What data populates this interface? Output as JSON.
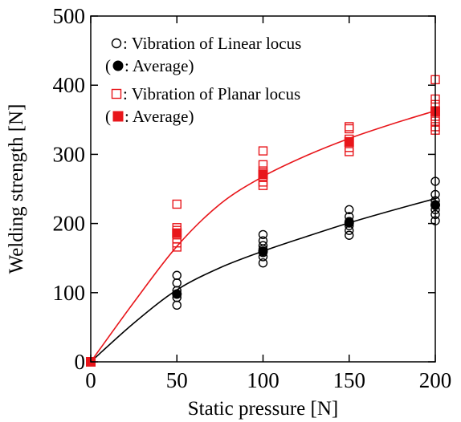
{
  "chart_data": {
    "type": "scatter",
    "xlabel": "Static pressure [N]",
    "ylabel": "Welding strength [N]",
    "xlim": [
      0,
      200
    ],
    "ylim": [
      0,
      500
    ],
    "xticks": [
      0,
      50,
      100,
      150,
      200
    ],
    "yticks": [
      0,
      100,
      200,
      300,
      400,
      500
    ],
    "xtick_labels": [
      "0",
      "50",
      "100",
      "150",
      "200"
    ],
    "ytick_labels": [
      "0",
      "100",
      "200",
      "300",
      "400",
      "500"
    ],
    "grid": false,
    "legend_placement": "top-left",
    "series": [
      {
        "name": "Vibration of Linear locus",
        "marker": "open-circle",
        "color": "#000000",
        "points": [
          [
            0,
            0
          ],
          [
            50,
            82
          ],
          [
            50,
            93
          ],
          [
            50,
            98
          ],
          [
            50,
            103
          ],
          [
            50,
            114
          ],
          [
            50,
            125
          ],
          [
            100,
            143
          ],
          [
            100,
            152
          ],
          [
            100,
            158
          ],
          [
            100,
            163
          ],
          [
            100,
            168
          ],
          [
            100,
            175
          ],
          [
            100,
            184
          ],
          [
            150,
            183
          ],
          [
            150,
            190
          ],
          [
            150,
            197
          ],
          [
            150,
            203
          ],
          [
            150,
            210
          ],
          [
            150,
            220
          ],
          [
            200,
            204
          ],
          [
            200,
            213
          ],
          [
            200,
            220
          ],
          [
            200,
            226
          ],
          [
            200,
            233
          ],
          [
            200,
            242
          ],
          [
            200,
            261
          ]
        ]
      },
      {
        "name": "Average",
        "marker": "filled-circle",
        "color": "#000000",
        "points": [
          [
            0,
            0
          ],
          [
            50,
            98
          ],
          [
            100,
            160
          ],
          [
            150,
            201
          ],
          [
            200,
            227
          ]
        ]
      },
      {
        "name": "Vibration of Planar locus",
        "marker": "open-square",
        "color": "#e8161b",
        "points": [
          [
            0,
            0
          ],
          [
            50,
            166
          ],
          [
            50,
            172
          ],
          [
            50,
            178
          ],
          [
            50,
            190
          ],
          [
            50,
            194
          ],
          [
            50,
            228
          ],
          [
            100,
            255
          ],
          [
            100,
            260
          ],
          [
            100,
            268
          ],
          [
            100,
            276
          ],
          [
            100,
            285
          ],
          [
            100,
            305
          ],
          [
            150,
            304
          ],
          [
            150,
            310
          ],
          [
            150,
            318
          ],
          [
            150,
            322
          ],
          [
            150,
            337
          ],
          [
            150,
            340
          ],
          [
            200,
            335
          ],
          [
            200,
            340
          ],
          [
            200,
            348
          ],
          [
            200,
            355
          ],
          [
            200,
            363
          ],
          [
            200,
            372
          ],
          [
            200,
            380
          ],
          [
            200,
            408
          ]
        ]
      },
      {
        "name": "Average",
        "marker": "filled-square",
        "color": "#e8161b",
        "points": [
          [
            0,
            0
          ],
          [
            50,
            186
          ],
          [
            100,
            271
          ],
          [
            150,
            318
          ],
          [
            200,
            362
          ]
        ]
      }
    ],
    "fit_curves": [
      {
        "series": "Vibration of Linear locus",
        "color": "#000000",
        "points": [
          [
            0,
            0
          ],
          [
            25,
            56
          ],
          [
            50,
            104
          ],
          [
            75,
            136
          ],
          [
            100,
            160
          ],
          [
            125,
            181
          ],
          [
            150,
            201
          ],
          [
            175,
            219
          ],
          [
            200,
            236
          ]
        ]
      },
      {
        "series": "Vibration of Planar locus",
        "color": "#e8161b",
        "points": [
          [
            0,
            0
          ],
          [
            25,
            86
          ],
          [
            50,
            167
          ],
          [
            75,
            228
          ],
          [
            100,
            268
          ],
          [
            125,
            298
          ],
          [
            150,
            323
          ],
          [
            175,
            344
          ],
          [
            200,
            363
          ]
        ]
      }
    ],
    "legend": [
      {
        "symbol": "open-circle",
        "color": "#000000",
        "text": ": Vibration of Linear locus",
        "prefix": "",
        "suffix": ""
      },
      {
        "symbol": "filled-circle",
        "color": "#000000",
        "text": ": Average)",
        "prefix": "(",
        "suffix": ""
      },
      {
        "symbol": "open-square",
        "color": "#e8161b",
        "text": ": Vibration of Planar locus",
        "prefix": "",
        "suffix": ""
      },
      {
        "symbol": "filled-square",
        "color": "#e8161b",
        "text": ": Average)",
        "prefix": "(",
        "suffix": ""
      }
    ]
  }
}
